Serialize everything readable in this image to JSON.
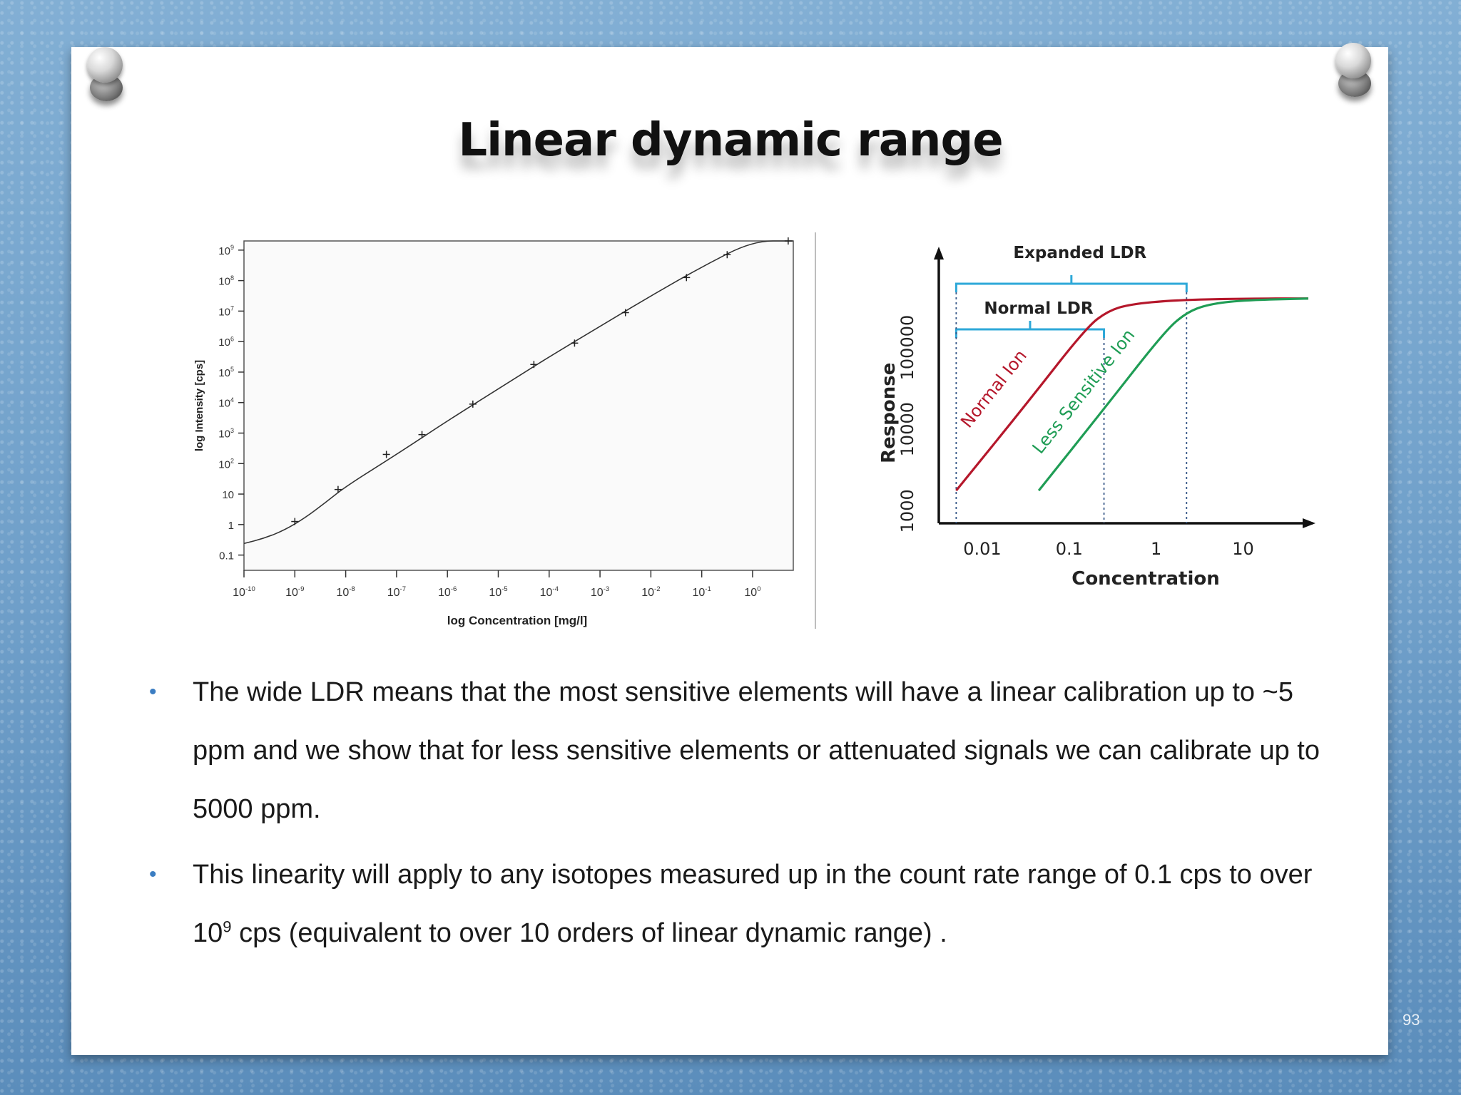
{
  "slide": {
    "title": "Linear dynamic range",
    "page_number": "93",
    "bullets": [
      {
        "text": " The wide LDR means that the most sensitive elements will have a linear calibration up to ~5 ppm and we show that for less sensitive elements or attenuated signals we can calibrate up to 5000 ppm."
      },
      {
        "text_pre": " This linearity will apply to any isotopes measured up in the count rate range of 0.1 cps to over 10",
        "superscript": "9",
        "text_post": "  cps (equivalent to over 10 orders of linear dynamic range) ."
      }
    ]
  },
  "chart_data": [
    {
      "type": "line",
      "xlabel": "log Concentration [mg/l]",
      "ylabel": "log Intensity [cps]",
      "x_scale": "log",
      "y_scale": "log",
      "x_ticks": [
        {
          "base": "10",
          "exp": "-10"
        },
        {
          "base": "10",
          "exp": "-9"
        },
        {
          "base": "10",
          "exp": "-8"
        },
        {
          "base": "10",
          "exp": "-7"
        },
        {
          "base": "10",
          "exp": "-6"
        },
        {
          "base": "10",
          "exp": "-5"
        },
        {
          "base": "10",
          "exp": "-4"
        },
        {
          "base": "10",
          "exp": "-3"
        },
        {
          "base": "10",
          "exp": "-2"
        },
        {
          "base": "10",
          "exp": "-1"
        },
        {
          "base": "10",
          "exp": "0"
        }
      ],
      "y_ticks": [
        {
          "base": "0.1",
          "exp": ""
        },
        {
          "base": "1",
          "exp": ""
        },
        {
          "base": "10",
          "exp": ""
        },
        {
          "base": "10",
          "exp": "2"
        },
        {
          "base": "10",
          "exp": "3"
        },
        {
          "base": "10",
          "exp": "4"
        },
        {
          "base": "10",
          "exp": "5"
        },
        {
          "base": "10",
          "exp": "6"
        },
        {
          "base": "10",
          "exp": "7"
        },
        {
          "base": "10",
          "exp": "8"
        },
        {
          "base": "10",
          "exp": "9"
        }
      ],
      "xlim_log10": [
        -10,
        0.8
      ],
      "ylim_log10": [
        -1.5,
        9.3
      ],
      "grid": true,
      "points_log10": [
        {
          "x": -9,
          "y": 0.1
        },
        {
          "x": -8.15,
          "y": 1.15
        },
        {
          "x": -7.2,
          "y": 2.3
        },
        {
          "x": -6.5,
          "y": 2.95
        },
        {
          "x": -5.5,
          "y": 3.95
        },
        {
          "x": -4.3,
          "y": 5.25
        },
        {
          "x": -3.5,
          "y": 5.95
        },
        {
          "x": -2.5,
          "y": 6.95
        },
        {
          "x": -1.3,
          "y": 8.1
        },
        {
          "x": -0.5,
          "y": 8.85
        },
        {
          "x": 0.7,
          "y": 9.9
        }
      ],
      "fit_curve_log10": [
        {
          "x": -10,
          "y": -0.62
        },
        {
          "x": -9.6,
          "y": -0.45
        },
        {
          "x": -9.2,
          "y": -0.18
        },
        {
          "x": -8.8,
          "y": 0.22
        },
        {
          "x": -8.4,
          "y": 0.72
        },
        {
          "x": -8.0,
          "y": 1.25
        },
        {
          "x": -7.0,
          "y": 2.3
        },
        {
          "x": -6.0,
          "y": 3.4
        },
        {
          "x": -5.0,
          "y": 4.45
        },
        {
          "x": -4.0,
          "y": 5.5
        },
        {
          "x": -3.0,
          "y": 6.5
        },
        {
          "x": -2.0,
          "y": 7.5
        },
        {
          "x": -1.0,
          "y": 8.45
        },
        {
          "x": 0.0,
          "y": 9.35
        },
        {
          "x": 0.8,
          "y": 10.05
        }
      ]
    },
    {
      "type": "line",
      "xlabel": "Concentration",
      "ylabel": "Response",
      "x_scale": "log",
      "y_scale": "log",
      "x_ticks": [
        "0.01",
        "0.1",
        "1",
        "10"
      ],
      "y_ticks": [
        "1000",
        "10000",
        "100000"
      ],
      "xlim_log10": [
        -2.5,
        1.8
      ],
      "ylim_log10": [
        2.5,
        5.85
      ],
      "annotations": [
        {
          "text": "Expanded LDR",
          "color": "#2ea8d8",
          "x_from_log10": -2.3,
          "x_to_log10": 0.35
        },
        {
          "text": "Normal LDR",
          "color": "#2ea8d8",
          "x_from_log10": -2.3,
          "x_to_log10": -0.6
        }
      ],
      "series": [
        {
          "name": "Normal Ion",
          "color": "#b5172b",
          "points_log10": [
            {
              "x": -2.3,
              "y": 2.9
            },
            {
              "x": -1.5,
              "y": 3.95
            },
            {
              "x": -0.8,
              "y": 4.9
            },
            {
              "x": -0.55,
              "y": 5.1
            },
            {
              "x": -0.3,
              "y": 5.18
            },
            {
              "x": 0.2,
              "y": 5.23
            },
            {
              "x": 1.0,
              "y": 5.25
            },
            {
              "x": 1.75,
              "y": 5.25
            }
          ]
        },
        {
          "name": "Less Sensitive Ion",
          "color": "#1f9d55",
          "points_log10": [
            {
              "x": -1.35,
              "y": 2.9
            },
            {
              "x": -0.6,
              "y": 3.9
            },
            {
              "x": 0.1,
              "y": 4.85
            },
            {
              "x": 0.35,
              "y": 5.08
            },
            {
              "x": 0.6,
              "y": 5.18
            },
            {
              "x": 1.0,
              "y": 5.23
            },
            {
              "x": 1.75,
              "y": 5.25
            }
          ]
        }
      ]
    }
  ]
}
